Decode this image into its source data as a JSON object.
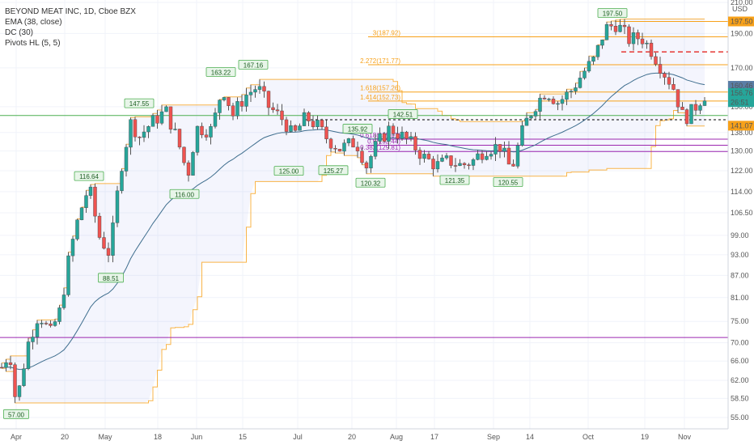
{
  "legend": {
    "title": "BEYOND MEAT INC, 1D, Cboe BZX",
    "ema": "EMA (38, close)",
    "dc": "DC (30)",
    "pivots": "Pivots HL (5, 5)"
  },
  "chart_data": {
    "type": "candlestick",
    "currency": "USD",
    "y_scale": "log",
    "ylim": [
      52,
      212
    ],
    "y_ticks": [
      "210.00",
      "190.00",
      "170.00",
      "150.00",
      "138.00",
      "130.00",
      "122.00",
      "114.00",
      "106.50",
      "99.00",
      "93.00",
      "87.00",
      "81.00",
      "75.00",
      "70.00",
      "66.00",
      "62.00",
      "58.50",
      "55.00"
    ],
    "x_ticks": [
      "Apr",
      "20",
      "May",
      "18",
      "Jun",
      "15",
      "Jul",
      "20",
      "Aug",
      "17",
      "Sep",
      "14",
      "Oct",
      "19",
      "Nov"
    ],
    "price_labels": [
      {
        "text": "197.50",
        "value": 197.5,
        "color": "#f7a11a",
        "text_color": "#000000"
      },
      {
        "text": "160.46",
        "value": 160.46,
        "color": "#5b7ea6",
        "text_color": "#ffffff"
      },
      {
        "text": "156.76",
        "value": 156.76,
        "color": "#26a69a",
        "text_color": "#ffffff"
      },
      {
        "text": "26:51",
        "value": 152.2,
        "color": "#26a69a",
        "text_color": "#ffffff"
      },
      {
        "text": "141.07",
        "value": 141.07,
        "color": "#f7a11a",
        "text_color": "#000000"
      }
    ],
    "fib_levels": [
      {
        "label": "3(187.92)",
        "value": 187.92,
        "color": "#f7a11a"
      },
      {
        "label": "2.272(171.77)",
        "value": 171.77,
        "color": "#f7a11a"
      },
      {
        "label": "1.618(157.26)",
        "value": 157.26,
        "color": "#f7a11a"
      },
      {
        "label": "1.414(152.73)",
        "value": 152.73,
        "color": "#f7a11a"
      },
      {
        "label": "0.618(135.07)",
        "value": 135.07,
        "color": "#9c27b0"
      },
      {
        "label": "0.5(132.44)",
        "value": 132.44,
        "color": "#9c27b0"
      },
      {
        "label": "0.382(129.81)",
        "value": 129.81,
        "color": "#9c27b0"
      }
    ],
    "pivot_labels": [
      {
        "text": "57.00",
        "value": 57.0
      },
      {
        "text": "116.64",
        "value": 116.64
      },
      {
        "text": "88.51",
        "value": 88.51
      },
      {
        "text": "147.55",
        "value": 147.55
      },
      {
        "text": "116.00",
        "value": 116.0
      },
      {
        "text": "163.22",
        "value": 163.22
      },
      {
        "text": "167.16",
        "value": 167.16
      },
      {
        "text": "125.00",
        "value": 125.0
      },
      {
        "text": "125.27",
        "value": 125.27
      },
      {
        "text": "135.92",
        "value": 135.92
      },
      {
        "text": "120.32",
        "value": 120.32
      },
      {
        "text": "142.51",
        "value": 142.51
      },
      {
        "text": "121.35",
        "value": 121.35
      },
      {
        "text": "120.55",
        "value": 120.55
      },
      {
        "text": "197.50",
        "value": 197.5
      }
    ],
    "series": [
      {
        "name": "EMA (38, close)"
      },
      {
        "name": "DC (30)"
      }
    ]
  }
}
